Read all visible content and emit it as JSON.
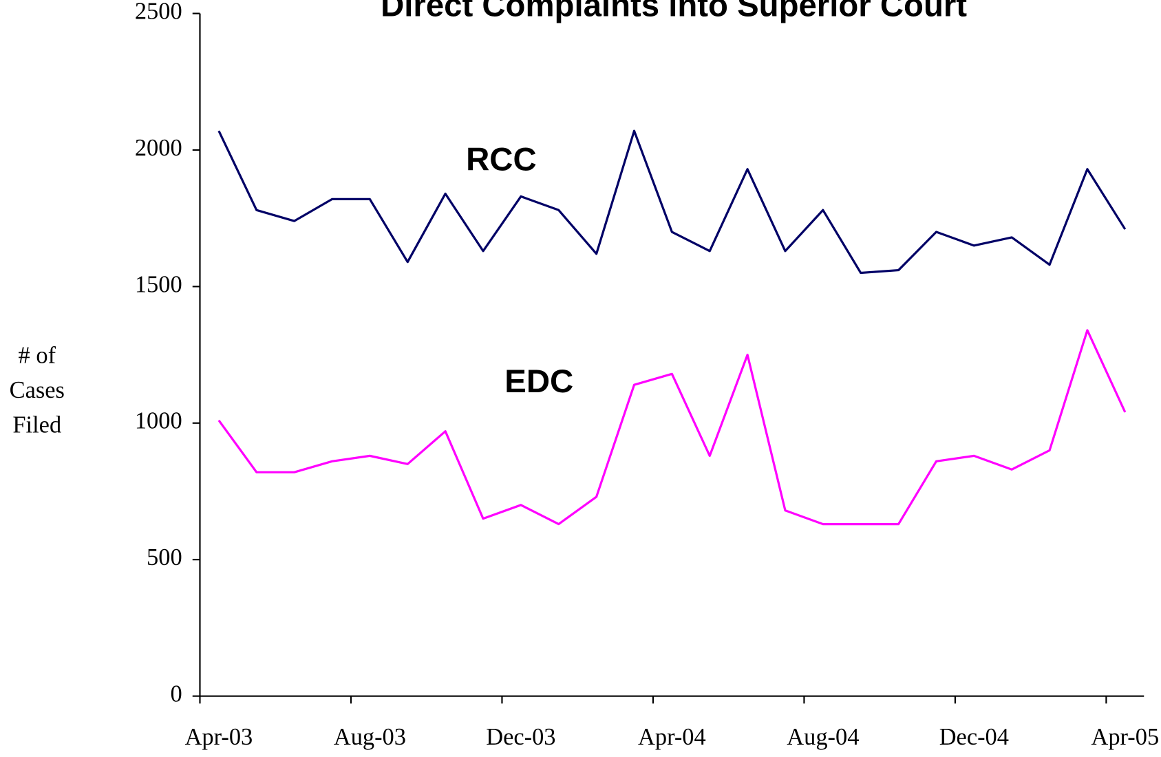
{
  "chart_data": {
    "type": "line",
    "title": "Direct Complaints into Superior Court",
    "y_label": "# of Cases Filed",
    "categories": [
      "Apr-03",
      null,
      null,
      null,
      "Aug-03",
      null,
      null,
      null,
      "Dec-03",
      null,
      null,
      null,
      "Apr-04",
      null,
      null,
      null,
      "Aug-04",
      null,
      null,
      null,
      "Dec-04",
      null,
      null,
      null,
      "Apr-05"
    ],
    "series": [
      {
        "name": "RCC",
        "color": "#000066",
        "values": [
          2070,
          1780,
          1740,
          1820,
          1820,
          1590,
          1840,
          1630,
          1830,
          1780,
          1620,
          2070,
          1700,
          1630,
          1930,
          1630,
          1780,
          1550,
          1560,
          1700,
          1650,
          1680,
          1580,
          1930,
          1710
        ]
      },
      {
        "name": "EDC",
        "color": "#ff00ff",
        "values": [
          1010,
          820,
          820,
          860,
          880,
          850,
          970,
          650,
          700,
          630,
          730,
          1140,
          1180,
          880,
          1250,
          680,
          630,
          630,
          630,
          860,
          880,
          830,
          900,
          1340,
          1040
        ]
      }
    ],
    "ylim": [
      0,
      2500
    ],
    "yticks": [
      0,
      500,
      1000,
      1500,
      2000,
      2500
    ],
    "grid": false
  }
}
